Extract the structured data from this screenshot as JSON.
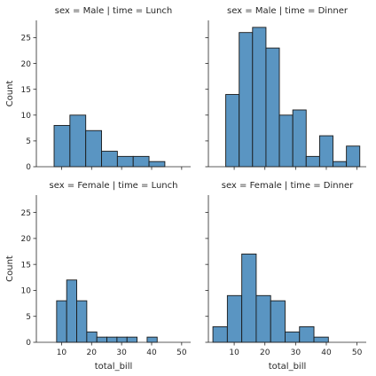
{
  "chart_data": [
    {
      "type": "bar",
      "title": "sex = Male | time = Lunch",
      "xlabel": "",
      "ylabel": "Count",
      "bin_edges": [
        7.51,
        12.78,
        18.05,
        23.32,
        28.59,
        33.86,
        39.13,
        44.4
      ],
      "values": [
        8,
        10,
        7,
        3,
        2,
        2,
        1
      ],
      "xlim": [
        1.6,
        53.0
      ],
      "ylim": [
        0,
        28.35
      ],
      "xticks": [
        10,
        20,
        30,
        40,
        50
      ],
      "yticks": [
        0,
        5,
        10,
        15,
        20,
        25
      ],
      "show_xtick_labels": false,
      "show_ytick_labels": true
    },
    {
      "type": "bar",
      "title": "sex = Male | time = Dinner",
      "xlabel": "",
      "ylabel": "",
      "bin_edges": [
        7.25,
        11.62,
        15.98,
        20.35,
        24.71,
        29.08,
        33.44,
        37.81,
        42.17,
        46.54,
        50.9
      ],
      "values": [
        14,
        26,
        27,
        23,
        10,
        11,
        2,
        6,
        1,
        4
      ],
      "xlim": [
        1.6,
        53.0
      ],
      "ylim": [
        0,
        28.35
      ],
      "xticks": [
        10,
        20,
        30,
        40,
        50
      ],
      "yticks": [
        0,
        5,
        10,
        15,
        20,
        25
      ],
      "show_xtick_labels": false,
      "show_ytick_labels": false
    },
    {
      "type": "bar",
      "title": "sex = Female | time = Lunch",
      "xlabel": "total_bill",
      "ylabel": "Count",
      "bin_edges": [
        8.35,
        11.7,
        15.05,
        18.4,
        21.75,
        25.1,
        28.45,
        31.8,
        35.15,
        38.5,
        41.85,
        45.2
      ],
      "values": [
        8,
        12,
        8,
        2,
        1,
        1,
        1,
        1,
        0,
        1,
        0
      ],
      "xlim": [
        1.6,
        53.0
      ],
      "ylim": [
        0,
        28.35
      ],
      "xticks": [
        10,
        20,
        30,
        40,
        50
      ],
      "yticks": [
        0,
        5,
        10,
        15,
        20,
        25
      ],
      "show_xtick_labels": true,
      "show_ytick_labels": true
    },
    {
      "type": "bar",
      "title": "sex = Female | time = Dinner",
      "xlabel": "total_bill",
      "ylabel": "",
      "bin_edges": [
        3.07,
        7.77,
        12.47,
        17.17,
        21.87,
        26.57,
        31.27,
        35.97,
        40.67,
        45.37
      ],
      "values": [
        3,
        9,
        17,
        9,
        8,
        2,
        3,
        1,
        0
      ],
      "xlim": [
        1.6,
        53.0
      ],
      "ylim": [
        0,
        28.35
      ],
      "xticks": [
        10,
        20,
        30,
        40,
        50
      ],
      "yticks": [
        0,
        5,
        10,
        15,
        20,
        25
      ],
      "show_xtick_labels": true,
      "show_ytick_labels": false
    }
  ],
  "colors": {
    "bar_fill": "#5a95c2",
    "bar_edge": "#1a1a1a",
    "axis": "#262626"
  }
}
